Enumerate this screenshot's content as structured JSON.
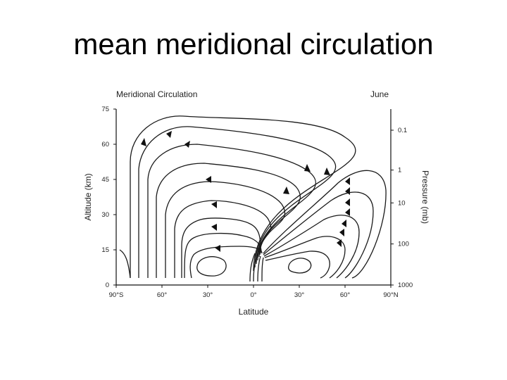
{
  "slide": {
    "title": "mean meridional circulation"
  },
  "figure": {
    "panel_title": "Meridional Circulation",
    "month": "June",
    "x_axis_label": "Latitude",
    "y_axis_left_label": "Altitude (km)",
    "y_axis_right_label": "Pressure (mb)",
    "x_ticks": [
      {
        "label": "90°S",
        "lat": -90
      },
      {
        "label": "60°",
        "lat": -60
      },
      {
        "label": "30°",
        "lat": -30
      },
      {
        "label": "0°",
        "lat": 0
      },
      {
        "label": "30°",
        "lat": 30
      },
      {
        "label": "60°",
        "lat": 60
      },
      {
        "label": "90°N",
        "lat": 90
      }
    ],
    "y_ticks_left": [
      {
        "label": "0",
        "km": 0
      },
      {
        "label": "15",
        "km": 15
      },
      {
        "label": "30",
        "km": 30
      },
      {
        "label": "45",
        "km": 45
      },
      {
        "label": "60",
        "km": 60
      },
      {
        "label": "75",
        "km": 75
      }
    ],
    "y_ticks_right": [
      {
        "label": "1000",
        "km": 0
      },
      {
        "label": "100",
        "km": 17.5
      },
      {
        "label": "10",
        "km": 35
      },
      {
        "label": "1",
        "km": 49
      },
      {
        "label": "0.1",
        "km": 66
      }
    ],
    "line_color": "#1a1a1a"
  }
}
